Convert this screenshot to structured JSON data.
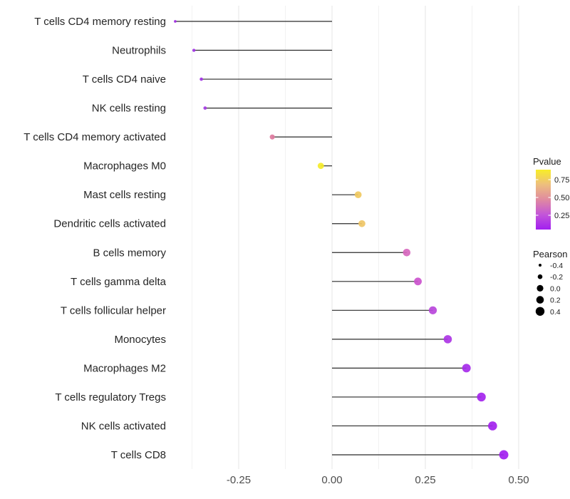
{
  "figure": {
    "background": "#FFFFFF",
    "stem_color": "#2B2B2B",
    "major_grid_color": "#E4E4E4",
    "minor_grid_color": "#F2F2F2",
    "axis_text_color": "#4D4D4D",
    "category_text_color": "#262626"
  },
  "chart_data": {
    "type": "scatter",
    "subtype": "horizontal-lollipop",
    "title": "",
    "xlabel": "",
    "ylabel": "",
    "grid": "on",
    "legend_position": "right",
    "stem_origin": 0,
    "x_axis": {
      "tick_labels": [
        "-0.25",
        "0.00",
        "0.25",
        "0.50"
      ],
      "tick_values": [
        -0.25,
        0,
        0.25,
        0.5
      ],
      "minor_tick_values": [
        -0.375,
        -0.125,
        0.125,
        0.375
      ],
      "range": [
        -0.43,
        0.53
      ]
    },
    "points": [
      {
        "label": "T cells CD4 memory resting",
        "pearson": -0.42,
        "pvalue_approx": 0.07,
        "color": "#A12CE3"
      },
      {
        "label": "Neutrophils",
        "pearson": -0.37,
        "pvalue_approx": 0.08,
        "color": "#A233E6"
      },
      {
        "label": "T cells CD4 naive",
        "pearson": -0.35,
        "pvalue_approx": 0.08,
        "color": "#A132E4"
      },
      {
        "label": "NK cells resting",
        "pearson": -0.34,
        "pvalue_approx": 0.09,
        "color": "#A43BE2"
      },
      {
        "label": "T cells CD4 memory activated",
        "pearson": -0.16,
        "pvalue_approx": 0.45,
        "color": "#DE7A9E"
      },
      {
        "label": "Macrophages M0",
        "pearson": -0.03,
        "pvalue_approx": 0.88,
        "color": "#F5EC2A"
      },
      {
        "label": "Mast cells resting",
        "pearson": 0.07,
        "pvalue_approx": 0.72,
        "color": "#F0C95F"
      },
      {
        "label": "Dendritic cells activated",
        "pearson": 0.08,
        "pvalue_approx": 0.7,
        "color": "#EFC566"
      },
      {
        "label": "B cells memory",
        "pearson": 0.2,
        "pvalue_approx": 0.4,
        "color": "#D767BE"
      },
      {
        "label": "T cells gamma delta",
        "pearson": 0.23,
        "pvalue_approx": 0.32,
        "color": "#CB52CD"
      },
      {
        "label": "T cells follicular helper",
        "pearson": 0.27,
        "pvalue_approx": 0.25,
        "color": "#B847DB"
      },
      {
        "label": "Monocytes",
        "pearson": 0.31,
        "pvalue_approx": 0.17,
        "color": "#AD35E5"
      },
      {
        "label": "Macrophages M2",
        "pearson": 0.36,
        "pvalue_approx": 0.1,
        "color": "#A62BEA"
      },
      {
        "label": "T cells regulatory  Tregs",
        "pearson": 0.4,
        "pvalue_approx": 0.06,
        "color": "#A424EE"
      },
      {
        "label": "NK cells activated",
        "pearson": 0.43,
        "pvalue_approx": 0.05,
        "color": "#A322EE"
      },
      {
        "label": "T cells CD8",
        "pearson": 0.46,
        "pvalue_approx": 0.03,
        "color": "#A21FF0"
      }
    ],
    "legend_pvalue": {
      "title": "Pvalue",
      "tick_labels": [
        "0.75",
        "0.50",
        "0.25"
      ],
      "gradient_top_to_bottom": [
        "#F8EE27",
        "#EDBE7E",
        "#E08AA0",
        "#C355D9",
        "#A21FF0"
      ]
    },
    "legend_pearson": {
      "title": "Pearson",
      "entries": [
        {
          "label": "-0.4",
          "pearson": -0.4
        },
        {
          "label": "-0.2",
          "pearson": -0.2
        },
        {
          "label": "0.0",
          "pearson": 0.0
        },
        {
          "label": "0.2",
          "pearson": 0.2
        },
        {
          "label": "0.4",
          "pearson": 0.4
        }
      ],
      "key_color": "#000000"
    }
  }
}
